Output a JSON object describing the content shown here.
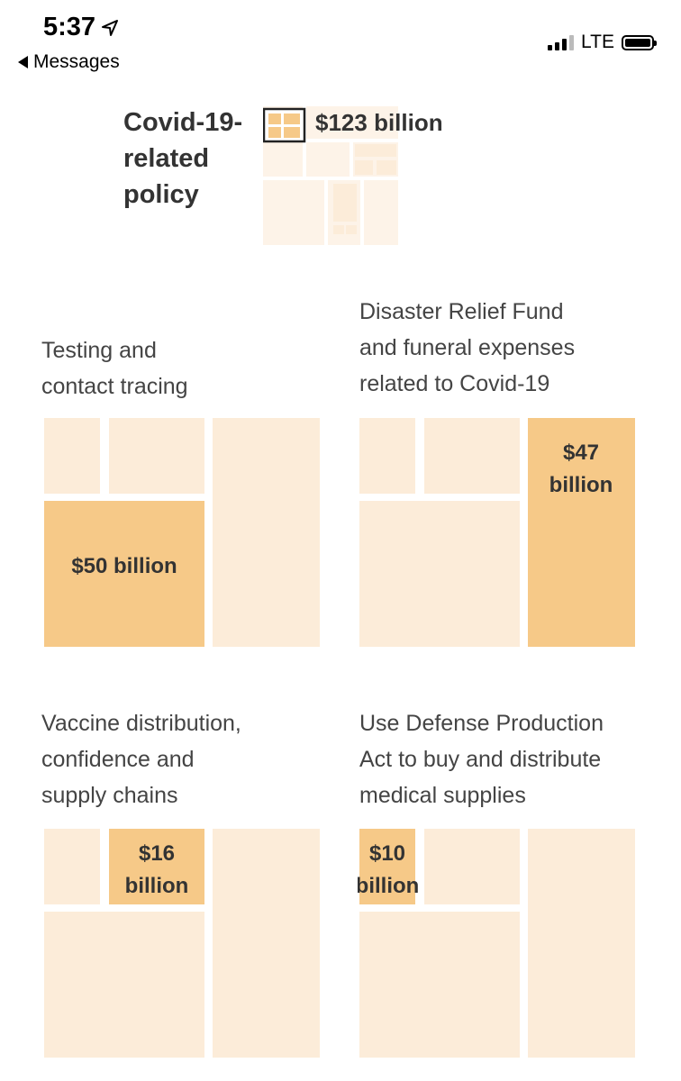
{
  "status_bar": {
    "time": "5:37",
    "back_label": "Messages",
    "network": "LTE"
  },
  "colors": {
    "highlight": "#f6c988",
    "light": "#fcecd9",
    "faint": "#fdf3e8",
    "text": "#333333"
  },
  "chart_data": {
    "type": "treemap",
    "overview": {
      "title_lines": [
        "Covid-19-",
        "related",
        "policy"
      ],
      "value_label": "$123 billion",
      "value": 123
    },
    "panels": [
      {
        "name": "testing",
        "label_lines": [
          "Testing and",
          "contact tracing"
        ],
        "value": 50,
        "value_label": [
          "$50 billion"
        ]
      },
      {
        "name": "disaster",
        "label_lines": [
          "Disaster Relief Fund",
          "and funeral expenses",
          "related to Covid-19"
        ],
        "value": 47,
        "value_label": [
          "$47",
          "billion"
        ]
      },
      {
        "name": "vaccine",
        "label_lines": [
          "Vaccine distribution,",
          "confidence and",
          "supply chains"
        ],
        "value": 16,
        "value_label": [
          "$16",
          "billion"
        ]
      },
      {
        "name": "defense",
        "label_lines": [
          "Use Defense Production",
          "Act to buy and distribute",
          "medical supplies"
        ],
        "value": 10,
        "value_label": [
          "$10",
          "billion"
        ]
      }
    ]
  }
}
